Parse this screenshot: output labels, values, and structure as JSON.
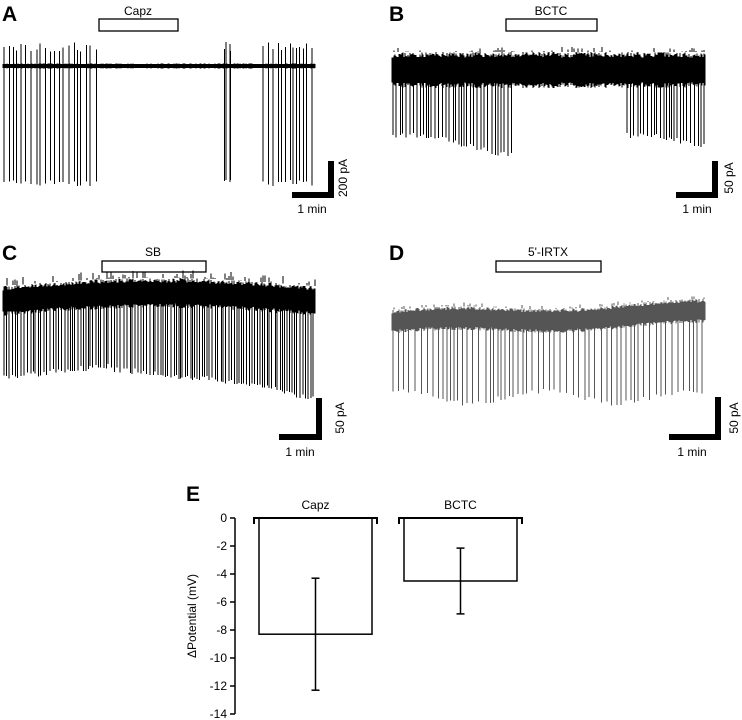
{
  "panels": [
    {
      "letter": "A",
      "drug": "Capz",
      "scale_y": "200 pA",
      "scale_x": "1 min"
    },
    {
      "letter": "B",
      "drug": "BCTC",
      "scale_y": "50 pA",
      "scale_x": "1 min"
    },
    {
      "letter": "C",
      "drug": "SB",
      "scale_y": "50 pA",
      "scale_x": "1 min"
    },
    {
      "letter": "D",
      "drug": "5'-IRTX",
      "scale_y": "50 pA",
      "scale_x": "1 min"
    }
  ],
  "chart_data": {
    "type": "bar",
    "panel_letter": "E",
    "categories": [
      "Capz",
      "BCTC"
    ],
    "values": [
      -8.3,
      -4.5
    ],
    "errors": [
      4.0,
      2.35
    ],
    "ylabel": "ΔPotential (mV)",
    "ylim": [
      -14,
      0
    ],
    "yticks": [
      "0",
      "-2",
      "-4",
      "-6",
      "-8",
      "-10",
      "-12",
      "-14"
    ],
    "tick_values": [
      0,
      -2,
      -4,
      -6,
      -8,
      -10,
      -12,
      -14
    ],
    "grid": false
  }
}
